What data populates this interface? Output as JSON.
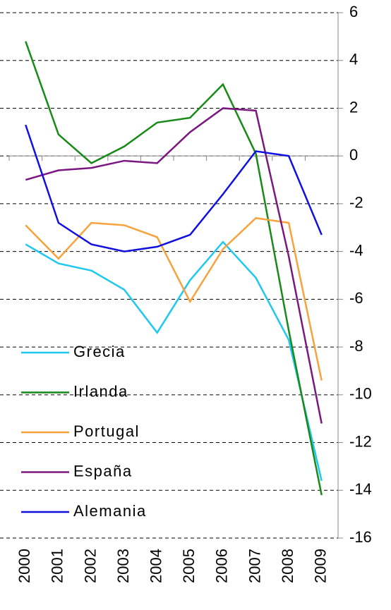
{
  "chart_data": {
    "type": "line",
    "categories": [
      "2000",
      "2001",
      "2002",
      "2003",
      "2004",
      "2005",
      "2006",
      "2007",
      "2008",
      "2009"
    ],
    "series": [
      {
        "name": "Grecia",
        "color": "#1ec8f0",
        "values": [
          -3.7,
          -4.5,
          -4.8,
          -5.6,
          -7.4,
          -5.2,
          -3.6,
          -5.1,
          -7.7,
          -13.6
        ]
      },
      {
        "name": "Irlanda",
        "color": "#178a17",
        "values": [
          4.8,
          0.9,
          -0.3,
          0.4,
          1.4,
          1.6,
          3.0,
          0.1,
          -7.3,
          -14.2
        ]
      },
      {
        "name": "Portugal",
        "color": "#f7a23c",
        "values": [
          -2.9,
          -4.3,
          -2.8,
          -2.9,
          -3.4,
          -6.1,
          -3.9,
          -2.6,
          -2.8,
          -9.4
        ]
      },
      {
        "name": "España",
        "color": "#7a1780",
        "values": [
          -1.0,
          -0.6,
          -0.5,
          -0.2,
          -0.3,
          1.0,
          2.0,
          1.9,
          -4.2,
          -11.2
        ]
      },
      {
        "name": "Alemania",
        "color": "#1010e0",
        "values": [
          1.3,
          -2.8,
          -3.7,
          -4.0,
          -3.8,
          -3.3,
          -1.6,
          0.2,
          0.0,
          -3.3
        ]
      }
    ],
    "ylim": [
      -16,
      6
    ],
    "yticks": [
      -16,
      -14,
      -12,
      -10,
      -8,
      -6,
      -4,
      -2,
      0,
      2,
      4,
      6
    ],
    "grid": true,
    "legend": "lower-left"
  }
}
